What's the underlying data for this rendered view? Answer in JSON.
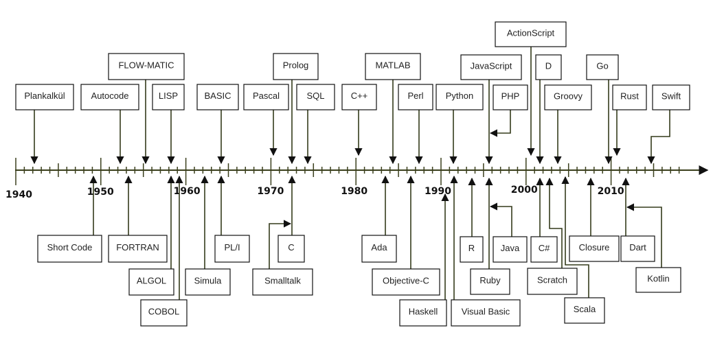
{
  "axis": {
    "decade_labels": [
      "1940",
      "1950",
      "1960",
      "1970",
      "1980",
      "1990",
      "2000",
      "2010"
    ],
    "start_year": 1940,
    "end_year": 2018
  },
  "languages": [
    {
      "name": "Plankalkül",
      "side": "above"
    },
    {
      "name": "Autocode",
      "side": "above"
    },
    {
      "name": "FLOW-MATIC",
      "side": "above"
    },
    {
      "name": "LISP",
      "side": "above"
    },
    {
      "name": "BASIC",
      "side": "above"
    },
    {
      "name": "Pascal",
      "side": "above"
    },
    {
      "name": "Prolog",
      "side": "above"
    },
    {
      "name": "SQL",
      "side": "above"
    },
    {
      "name": "C++",
      "side": "above"
    },
    {
      "name": "MATLAB",
      "side": "above"
    },
    {
      "name": "Perl",
      "side": "above"
    },
    {
      "name": "Python",
      "side": "above"
    },
    {
      "name": "JavaScript",
      "side": "above"
    },
    {
      "name": "PHP",
      "side": "above"
    },
    {
      "name": "ActionScript",
      "side": "above"
    },
    {
      "name": "D",
      "side": "above"
    },
    {
      "name": "Groovy",
      "side": "above"
    },
    {
      "name": "Go",
      "side": "above"
    },
    {
      "name": "Rust",
      "side": "above"
    },
    {
      "name": "Swift",
      "side": "above"
    },
    {
      "name": "Short Code",
      "side": "below"
    },
    {
      "name": "FORTRAN",
      "side": "below"
    },
    {
      "name": "ALGOL",
      "side": "below"
    },
    {
      "name": "COBOL",
      "side": "below"
    },
    {
      "name": "Simula",
      "side": "below"
    },
    {
      "name": "PL/I",
      "side": "below"
    },
    {
      "name": "C",
      "side": "below"
    },
    {
      "name": "Smalltalk",
      "side": "below"
    },
    {
      "name": "Ada",
      "side": "below"
    },
    {
      "name": "Objective-C",
      "side": "below"
    },
    {
      "name": "Haskell",
      "side": "below"
    },
    {
      "name": "Visual Basic",
      "side": "below"
    },
    {
      "name": "R",
      "side": "below"
    },
    {
      "name": "Ruby",
      "side": "below"
    },
    {
      "name": "Java",
      "side": "below"
    },
    {
      "name": "C#",
      "side": "below"
    },
    {
      "name": "Scratch",
      "side": "below"
    },
    {
      "name": "Scala",
      "side": "below"
    },
    {
      "name": "Closure",
      "side": "below"
    },
    {
      "name": "Dart",
      "side": "below"
    },
    {
      "name": "Kotlin",
      "side": "below"
    }
  ],
  "colors": {
    "axis": "#3a3f1c",
    "box_border": "#111111",
    "text": "#222222"
  }
}
